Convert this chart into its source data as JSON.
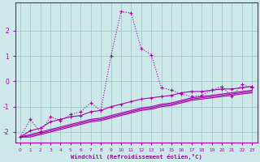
{
  "xlabel": "Windchill (Refroidissement éolien,°C)",
  "background_color": "#cce8e8",
  "grid_color": "#aacccc",
  "line_color": "#aa00aa",
  "xlim": [
    -0.5,
    23.5
  ],
  "ylim": [
    -2.4,
    3.1
  ],
  "yticks": [
    -2,
    -1,
    0,
    1,
    2
  ],
  "xticks": [
    0,
    1,
    2,
    3,
    4,
    5,
    6,
    7,
    8,
    9,
    10,
    11,
    12,
    13,
    14,
    15,
    16,
    17,
    18,
    19,
    20,
    21,
    22,
    23
  ],
  "curve_dotted_x": [
    0,
    1,
    2,
    3,
    4,
    5,
    6,
    7,
    8,
    9,
    10,
    11,
    12,
    13,
    14,
    15,
    16,
    17,
    18,
    19,
    20,
    21,
    22,
    23
  ],
  "curve_dotted_y": [
    -2.2,
    -1.5,
    -2.0,
    -1.4,
    -1.55,
    -1.3,
    -1.2,
    -0.85,
    -1.15,
    1.0,
    2.75,
    2.7,
    1.3,
    1.05,
    -0.25,
    -0.35,
    -0.5,
    -0.6,
    -0.55,
    -0.35,
    -0.2,
    -0.6,
    -0.12,
    -0.25
  ],
  "curve_solid_marked_x": [
    0,
    1,
    2,
    3,
    4,
    5,
    6,
    7,
    8,
    9,
    10,
    11,
    12,
    13,
    14,
    15,
    16,
    17,
    18,
    19,
    20,
    21,
    22,
    23
  ],
  "curve_solid_marked_y": [
    -2.2,
    -1.95,
    -1.85,
    -1.6,
    -1.5,
    -1.4,
    -1.35,
    -1.2,
    -1.15,
    -1.0,
    -0.9,
    -0.8,
    -0.7,
    -0.65,
    -0.6,
    -0.55,
    -0.45,
    -0.4,
    -0.4,
    -0.35,
    -0.3,
    -0.3,
    -0.25,
    -0.2
  ],
  "line_b1_x": [
    0,
    1,
    2,
    3,
    4,
    5,
    6,
    7,
    8,
    9,
    10,
    11,
    12,
    13,
    14,
    15,
    16,
    17,
    18,
    19,
    20,
    21,
    22,
    23
  ],
  "line_b1_y": [
    -2.2,
    -2.1,
    -2.0,
    -1.9,
    -1.8,
    -1.7,
    -1.6,
    -1.5,
    -1.45,
    -1.35,
    -1.25,
    -1.15,
    -1.05,
    -1.0,
    -0.9,
    -0.85,
    -0.75,
    -0.65,
    -0.6,
    -0.55,
    -0.5,
    -0.45,
    -0.4,
    -0.35
  ],
  "line_b2_x": [
    0,
    1,
    2,
    3,
    4,
    5,
    6,
    7,
    8,
    9,
    10,
    11,
    12,
    13,
    14,
    15,
    16,
    17,
    18,
    19,
    20,
    21,
    22,
    23
  ],
  "line_b2_y": [
    -2.2,
    -2.15,
    -2.05,
    -1.95,
    -1.85,
    -1.75,
    -1.65,
    -1.55,
    -1.5,
    -1.4,
    -1.3,
    -1.2,
    -1.1,
    -1.05,
    -0.95,
    -0.9,
    -0.8,
    -0.7,
    -0.65,
    -0.6,
    -0.55,
    -0.5,
    -0.45,
    -0.4
  ],
  "line_b3_x": [
    0,
    1,
    2,
    3,
    4,
    5,
    6,
    7,
    8,
    9,
    10,
    11,
    12,
    13,
    14,
    15,
    16,
    17,
    18,
    19,
    20,
    21,
    22,
    23
  ],
  "line_b3_y": [
    -2.2,
    -2.2,
    -2.1,
    -2.0,
    -1.9,
    -1.8,
    -1.7,
    -1.6,
    -1.55,
    -1.45,
    -1.35,
    -1.25,
    -1.15,
    -1.1,
    -1.0,
    -0.95,
    -0.85,
    -0.75,
    -0.7,
    -0.65,
    -0.6,
    -0.55,
    -0.5,
    -0.45
  ]
}
